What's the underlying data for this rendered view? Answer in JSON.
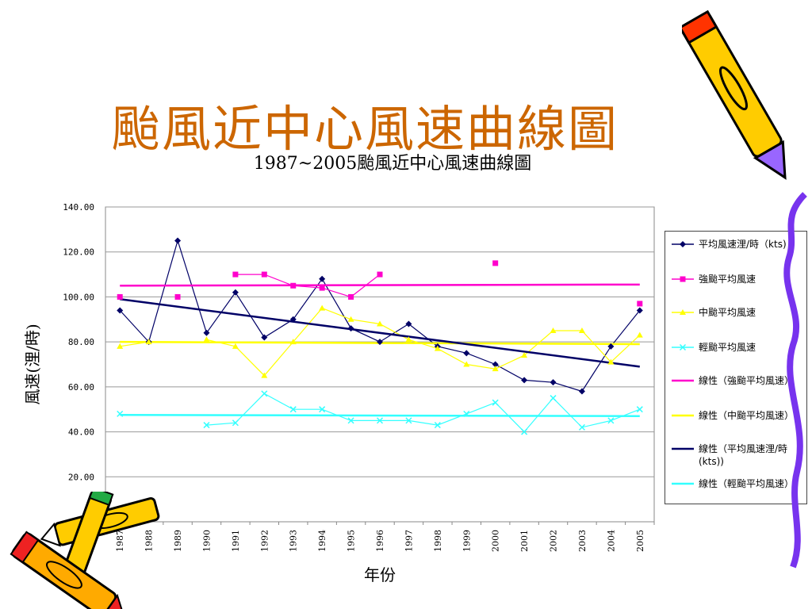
{
  "slide": {
    "title": "颱風近中心風速曲線圖"
  },
  "chart_data": {
    "type": "line",
    "title": "1987~2005颱風近中心風速曲線圖",
    "xlabel": "年份",
    "ylabel": "風速(浬/時)",
    "x": [
      "1987",
      "1988",
      "1989",
      "1990",
      "1991",
      "1992",
      "1993",
      "1994",
      "1995",
      "1996",
      "1997",
      "1998",
      "1999",
      "2000",
      "2001",
      "2002",
      "2003",
      "2004",
      "2005"
    ],
    "ylim": [
      0,
      140
    ],
    "yticks": [
      "140.00",
      "120.00",
      "100.00",
      "80.00",
      "60.00",
      "40.00",
      "20.00"
    ],
    "ytick_values": [
      140,
      120,
      100,
      80,
      60,
      40,
      20
    ],
    "grid": true,
    "legend_position": "right",
    "series": [
      {
        "name": "平均風速浬/時（kts)",
        "color": "#000066",
        "marker": "diamond",
        "values": [
          94,
          80,
          125,
          84,
          102,
          82,
          90,
          108,
          86,
          80,
          88,
          78,
          75,
          70,
          63,
          62,
          58,
          78,
          94
        ]
      },
      {
        "name": "強颱平均風速",
        "color": "#ff00cc",
        "marker": "square",
        "values": [
          100,
          null,
          100,
          null,
          110,
          110,
          105,
          104,
          100,
          110,
          null,
          null,
          null,
          115,
          null,
          null,
          null,
          null,
          97
        ]
      },
      {
        "name": "中颱平均風速",
        "color": "#ffff00",
        "marker": "triangle",
        "values": [
          78,
          80,
          null,
          81,
          78,
          65,
          80,
          95,
          90,
          88,
          81,
          77,
          70,
          68,
          74,
          85,
          85,
          71,
          83
        ]
      },
      {
        "name": "輕颱平均風速",
        "color": "#33ffff",
        "marker": "x",
        "values": [
          48,
          null,
          null,
          43,
          44,
          57,
          50,
          50,
          45,
          45,
          45,
          43,
          48,
          53,
          40,
          55,
          42,
          45,
          50
        ]
      }
    ],
    "trendlines": [
      {
        "name": "線性（強颱平均風速）",
        "color": "#ff00cc",
        "start": 105,
        "end": 105.5
      },
      {
        "name": "線性（中颱平均風速）",
        "color": "#ffff00",
        "start": 80,
        "end": 79
      },
      {
        "name": "線性（平均風速浬/時(kts))",
        "color": "#000066",
        "start": 99,
        "end": 69
      },
      {
        "name": "線性（輕颱平均風速）",
        "color": "#33ffff",
        "start": 47.5,
        "end": 47
      }
    ]
  }
}
